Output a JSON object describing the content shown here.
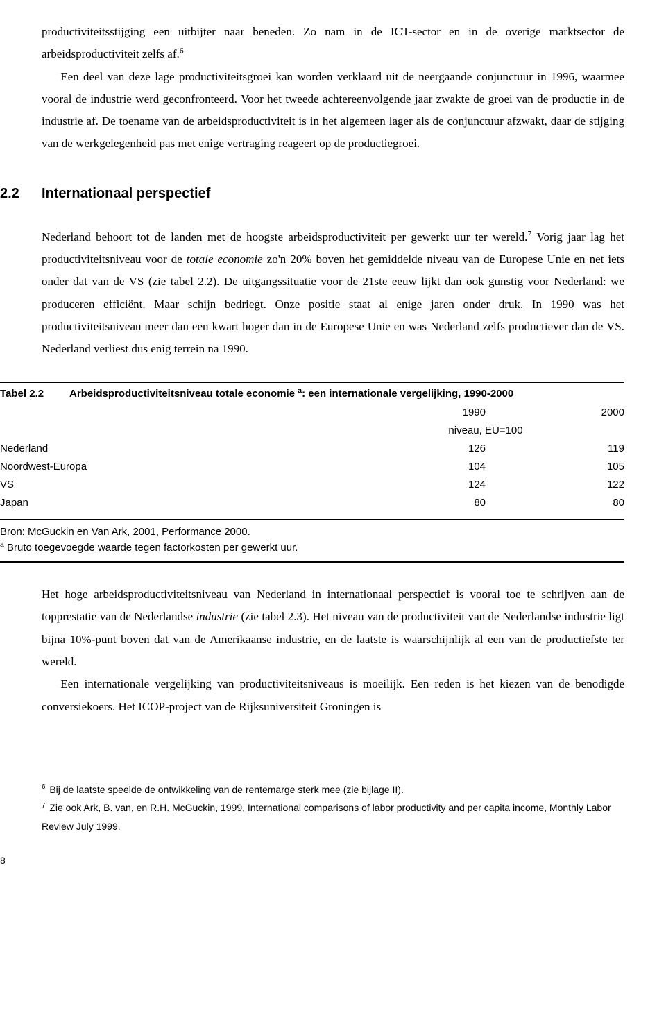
{
  "para1": "productiviteitsstijging een uitbijter naar beneden. Zo nam in de ICT-sector en in de overige marktsector de arbeidsproductiviteit zelfs af.",
  "fn6mark": "6",
  "para2": "Een deel van deze lage productiviteitsgroei kan worden verklaard uit de neergaande conjunctuur in 1996, waarmee vooral de industrie werd geconfronteerd. Voor het tweede achtereenvolgende jaar zwakte de groei van de productie in de industrie af. De toename van de arbeidsproductiviteit is in het algemeen lager als de conjunctuur afzwakt, daar de stijging van de werkgelegenheid pas met enige vertraging reageert op de productiegroei.",
  "section": {
    "num": "2.2",
    "title": "Internationaal perspectief"
  },
  "para3a": "Nederland behoort tot de landen met de hoogste arbeidsproductiviteit per gewerkt uur ter wereld.",
  "fn7mark": "7",
  "para3b_before": " Vorig jaar lag het productiviteitsniveau voor de ",
  "para3b_italic": "totale economie",
  "para3b_after": " zo'n 20% boven het gemiddelde niveau van de Europese Unie en net iets onder dat van de VS (zie tabel 2.2). De uitgangssituatie voor de 21ste eeuw lijkt dan ook gunstig voor Nederland: we produceren efficiënt. Maar schijn bedriegt. Onze positie staat al enige jaren onder druk. In 1990 was het productiviteitsniveau meer dan een kwart hoger dan in de Europese Unie en was Nederland zelfs productiever dan de VS. Nederland verliest dus enig terrein na 1990.",
  "table": {
    "label": "Tabel 2.2",
    "caption_before": "Arbeidsproductiviteitsniveau totale economie ",
    "caption_supref": "a",
    "caption_after": ": een internationale vergelijking, 1990-2000",
    "col_year1": "1990",
    "col_year2": "2000",
    "unit": "niveau, EU=100",
    "rows": [
      {
        "name": "Nederland",
        "v1": "126",
        "v2": "119"
      },
      {
        "name": "Noordwest-Europa",
        "v1": "104",
        "v2": "105"
      },
      {
        "name": "VS",
        "v1": "124",
        "v2": "122"
      },
      {
        "name": "Japan",
        "v1": "80",
        "v2": "80"
      }
    ],
    "source": "Bron: McGuckin en Van Ark, 2001, Performance 2000.",
    "note_sup": "a",
    "note_text": " Bruto toegevoegde waarde tegen factorkosten per gewerkt uur."
  },
  "para4_before": "Het hoge arbeidsproductiviteitsniveau van Nederland in internationaal perspectief is vooral toe te schrijven aan de topprestatie van de Nederlandse ",
  "para4_italic": "industrie",
  "para4_after": " (zie tabel 2.3). Het niveau van de productiviteit van de Nederlandse industrie ligt bijna 10%-punt boven dat van de Amerikaanse industrie, en de laatste is waarschijnlijk al een van de productiefste ter wereld.",
  "para5": "Een internationale vergelijking van productiviteitsniveaus is moeilijk. Een reden is het kiezen van de benodigde conversiekoers. Het ICOP-project van de Rijksuniversiteit Groningen is",
  "footnotes": {
    "f6_sup": "6",
    "f6_text": " Bij de laatste speelde de ontwikkeling van de rentemarge sterk mee (zie bijlage II).",
    "f7_sup": "7",
    "f7_text": " Zie ook Ark, B. van, en R.H. McGuckin, 1999, International comparisons of labor productivity and per capita income, Monthly Labor Review July 1999."
  },
  "pagenum": "8"
}
